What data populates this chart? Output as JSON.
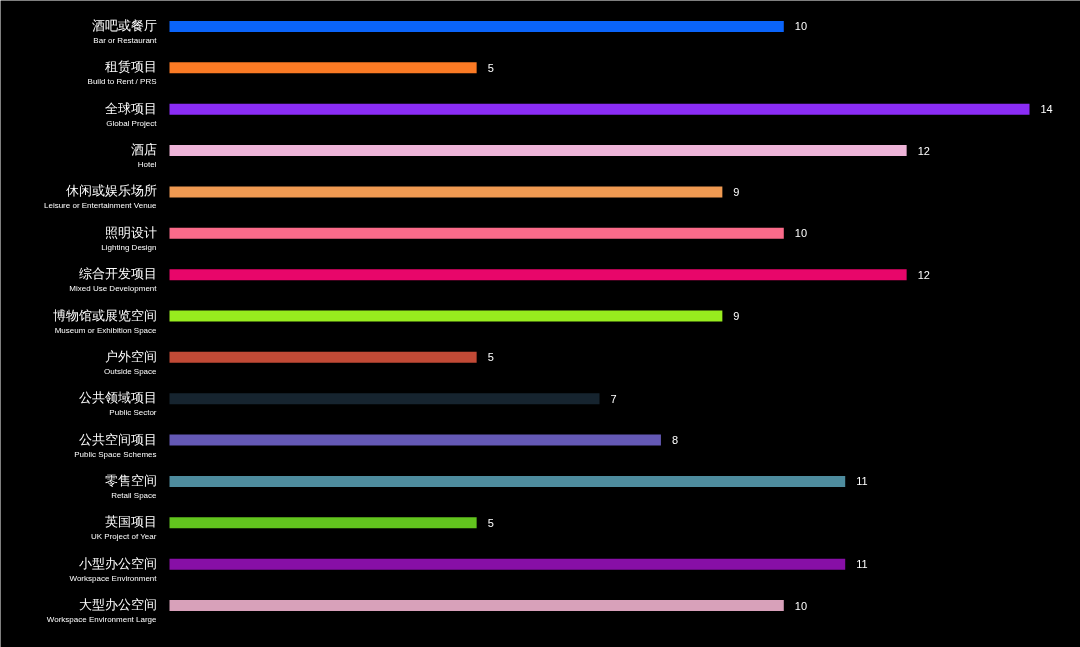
{
  "chart_data": {
    "type": "bar",
    "orientation": "horizontal",
    "data_labels": true,
    "categories": [
      "酒吧或餐厅\nBar or Restaurant",
      "租赁项目\nBuild to Rent / PRS",
      "全球项目\nGlobal Project",
      "酒店\nHotel",
      "休闲或娱乐场所\nLeisure or Entertainment Venue",
      "照明设计\nLighting Design",
      "综合开发项目\nMixed Use Development",
      "博物馆或展览空间\nMuseum or Exhibition Space",
      "户外空间\nOutside Space",
      "公共领域项目\nPublic Sector",
      "公共空间项目\nPublic Space Schemes",
      "零售空间\nRetail Space",
      "英国项目\nUK Project of Year",
      "小型办公空间\nWorkspace Environment",
      "大型办公空间\nWorkspace Environment Large"
    ],
    "values": [
      10,
      5,
      14,
      12,
      9,
      10,
      12,
      9,
      5,
      7,
      8,
      11,
      5,
      11,
      10
    ],
    "colors": [
      "#0a64fa",
      "#fb7a24",
      "#8a2cf5",
      "#eeb4d8",
      "#f09a52",
      "#fa6b8a",
      "#e8066a",
      "#97ec1e",
      "#c24a36",
      "#16242f",
      "#6459b5",
      "#4e8c9e",
      "#62c41e",
      "#870fa6",
      "#d8a1ba"
    ]
  }
}
